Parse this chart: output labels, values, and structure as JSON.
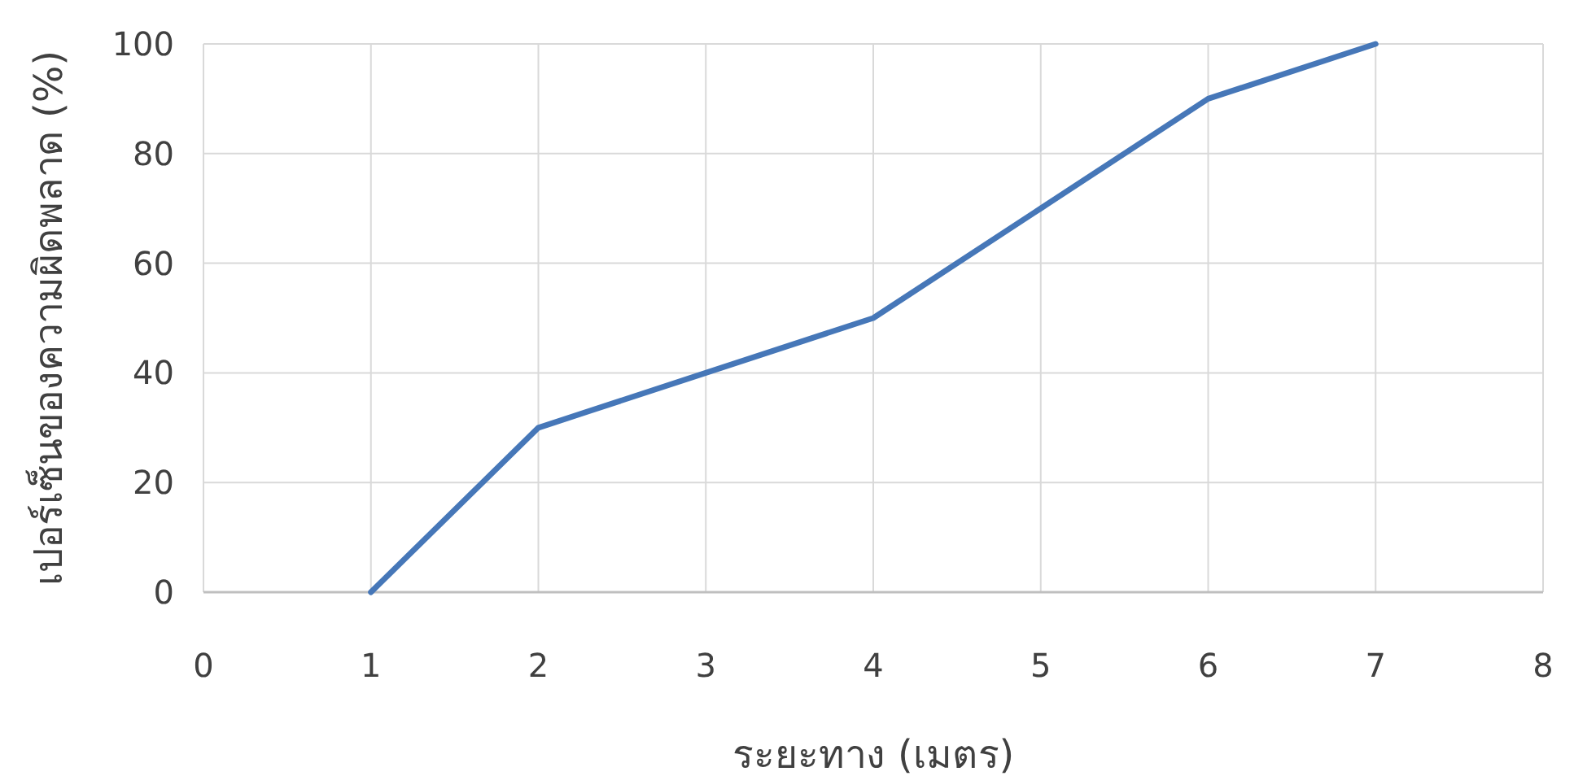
{
  "chart_data": {
    "type": "line",
    "xlabel": "ระยะทาง (เมตร)",
    "ylabel": "เปอร์เซ็นของความผิดพลาด (%)",
    "x": [
      1,
      2,
      3,
      4,
      5,
      6,
      7
    ],
    "series": [
      {
        "color": "#4677b8",
        "values": [
          0,
          30,
          40,
          50,
          70,
          90,
          100
        ]
      }
    ],
    "xlim": [
      0,
      8
    ],
    "ylim": [
      0,
      100
    ],
    "xticks": [
      0,
      1,
      2,
      3,
      4,
      5,
      6,
      7,
      8
    ],
    "yticks": [
      0,
      20,
      40,
      60,
      80,
      100
    ],
    "grid": true
  }
}
